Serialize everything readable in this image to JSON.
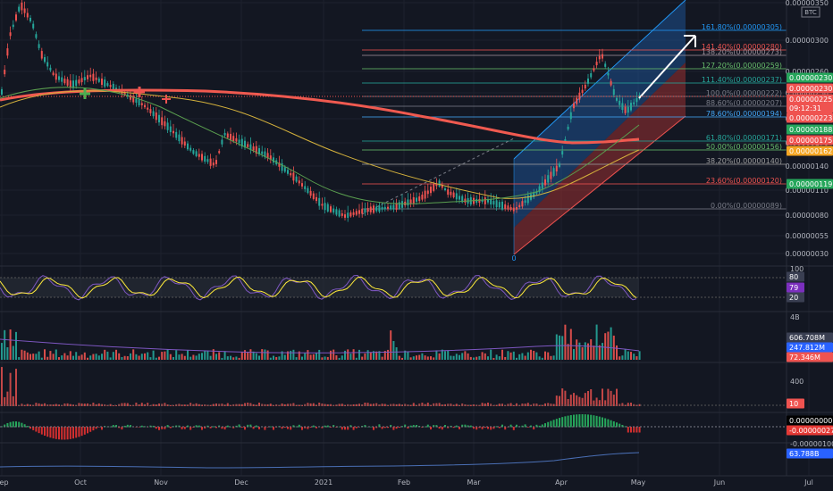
{
  "symbol_badge": "BTC",
  "colors": {
    "background": "#131722",
    "up": "#26a69a",
    "down": "#ef5350",
    "ma200": "#f05a50",
    "ma_yellow": "#d4b13c",
    "ma_green": "#5a9e4f",
    "channel_blue": "#1f5ea8",
    "channel_red": "#a83232",
    "stoch_k": "#7e57c2",
    "stoch_d": "#ffeb3b",
    "macd_pos": "#26a65b",
    "macd_neg": "#d32f2f",
    "line_blue": "#4a6fb5"
  },
  "time_axis": [
    "Sep",
    "Oct",
    "Nov",
    "Dec",
    "2021",
    "Feb",
    "Mar",
    "Apr",
    "May",
    "Jun",
    "Jul"
  ],
  "price_axis": [
    "0.00000350",
    "0.00000300",
    "0.00000260",
    "0.00000230",
    "0.00000200",
    "0.00000170",
    "0.00000140",
    "0.00000110",
    "0.00000080",
    "0.00000055",
    "0.00000030"
  ],
  "fib_levels": [
    {
      "label": "161.80%(0.00000305)",
      "color": "#2196f3"
    },
    {
      "label": "141.40%(0.00000280)",
      "color": "#ef5350"
    },
    {
      "label": "138.20%(0.00000273)",
      "color": "#9c8f99"
    },
    {
      "label": "127.20%(0.00000259)",
      "color": "#66bb6a"
    },
    {
      "label": "111.40%(0.00000237)",
      "color": "#26a69a"
    },
    {
      "label": "100.0%(0.00000222)",
      "color": "#787b86"
    },
    {
      "label": "88.60%(0.00000207)",
      "color": "#787b86"
    },
    {
      "label": "78.60%(0.00000194)",
      "color": "#42a5f5"
    },
    {
      "label": "61.80%(0.00000171)",
      "color": "#26a69a"
    },
    {
      "label": "50.00%(0.00000156)",
      "color": "#66bb6a"
    },
    {
      "label": "38.20%(0.00000140)",
      "color": "#9e9e9e"
    },
    {
      "label": "23.60%(0.00000120)",
      "color": "#ef5350"
    },
    {
      "label": "0.00%(0.00000089)",
      "color": "#787b86"
    }
  ],
  "channel_anchor_label": "0",
  "price_pills": [
    {
      "text": "0.00000230",
      "bg": "#26a65b"
    },
    {
      "text": "0.00000230",
      "bg": "#ef5350"
    },
    {
      "text": "0.00000225",
      "bg": "#ef5350"
    },
    {
      "text": "09:12:31",
      "bg": "#ef5350"
    },
    {
      "text": "0.00000223",
      "bg": "#ef5350"
    },
    {
      "text": "0.00000188",
      "bg": "#26a65b"
    },
    {
      "text": "0.00000175",
      "bg": "#ef5350"
    },
    {
      "text": "0.00000162",
      "bg": "#f5a623"
    },
    {
      "text": "0.00000119",
      "bg": "#26a65b"
    }
  ],
  "stoch": {
    "axis_top": "100",
    "pills": [
      {
        "text": "80",
        "bg": "#3a3f52"
      },
      {
        "text": "79",
        "bg": "#7b2fbe"
      },
      {
        "text": "20",
        "bg": "#3a3f52"
      }
    ]
  },
  "volume": {
    "axis_top": "4B",
    "pills": [
      {
        "text": "606.708M",
        "bg": "#3a3f52"
      },
      {
        "text": "247.812M",
        "bg": "#2962ff"
      },
      {
        "text": "72.346M",
        "bg": "#ef5350"
      }
    ]
  },
  "hist": {
    "axis_top": "400",
    "pills": [
      {
        "text": "10",
        "bg": "#ef5350"
      }
    ]
  },
  "macd": {
    "pills": [
      {
        "text": "0.00000000",
        "bg": "#000000"
      },
      {
        "text": "-0.00000027",
        "bg": "#e53935"
      }
    ],
    "axis_bottom": "-0.00000100"
  },
  "line_pane": {
    "pills": [
      {
        "text": "63.788B",
        "bg": "#2962ff"
      }
    ]
  }
}
